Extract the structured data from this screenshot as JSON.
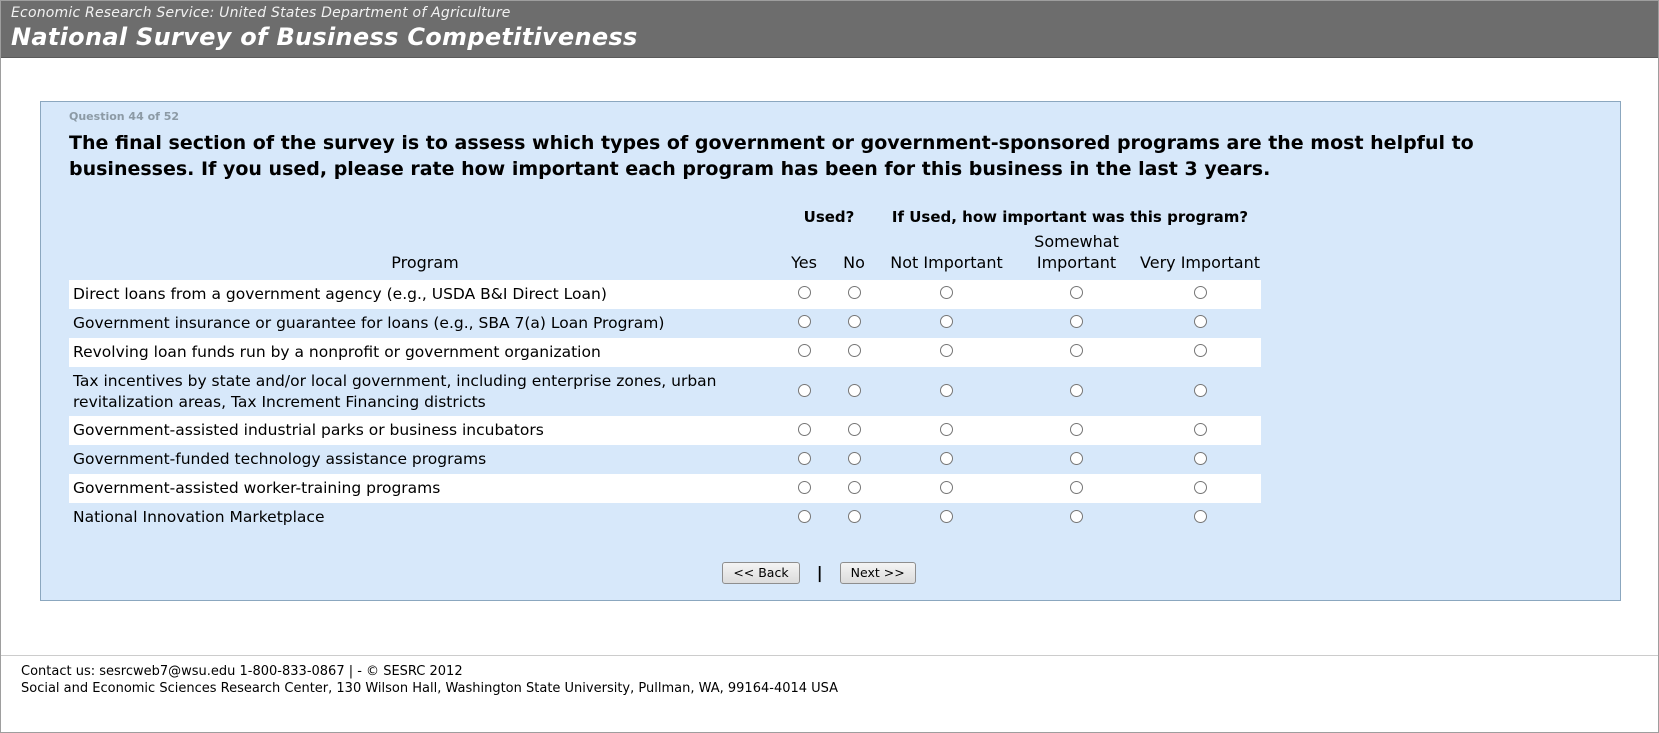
{
  "header": {
    "subtitle": "Economic Research Service: United States Department of Agriculture",
    "title": "National Survey of Business Competitiveness"
  },
  "survey": {
    "question_number": "Question 44 of 52",
    "question_text": "The final section of the survey is to assess which types of government or government-sponsored programs are the most helpful to businesses. If you used, please rate how important each program has been for this business in the last 3 years.",
    "table": {
      "program_header": "Program",
      "used_group_header": "Used?",
      "importance_group_header": "If Used, how important was this program?",
      "used_options": [
        "Yes",
        "No"
      ],
      "importance_options": [
        "Not Important",
        "Somewhat Important",
        "Very Important"
      ],
      "programs": [
        "Direct loans from a government agency (e.g., USDA B&I Direct Loan)",
        "Government insurance or guarantee for loans (e.g., SBA 7(a) Loan Program)",
        "Revolving loan funds run by a nonprofit or government organization",
        "Tax incentives by state and/or local government, including enterprise zones, urban revitalization areas, Tax Increment Financing districts",
        "Government-assisted industrial parks or business incubators",
        "Government-funded technology assistance programs",
        "Government-assisted worker-training programs",
        "National Innovation Marketplace"
      ]
    },
    "navigation": {
      "back_label": "<< Back",
      "separator": "|",
      "next_label": "Next >>"
    }
  },
  "footer": {
    "line1": "Contact us: sesrcweb7@wsu.edu 1-800-833-0867 | - © SESRC 2012",
    "line2": "Social and Economic Sciences Research Center, 130 Wilson Hall, Washington State University, Pullman, WA, 99164-4014 USA"
  },
  "colors": {
    "header_bg": "#6d6d6d",
    "panel_bg": "#d7e8fa",
    "row_alt_bg": "#ffffff"
  }
}
